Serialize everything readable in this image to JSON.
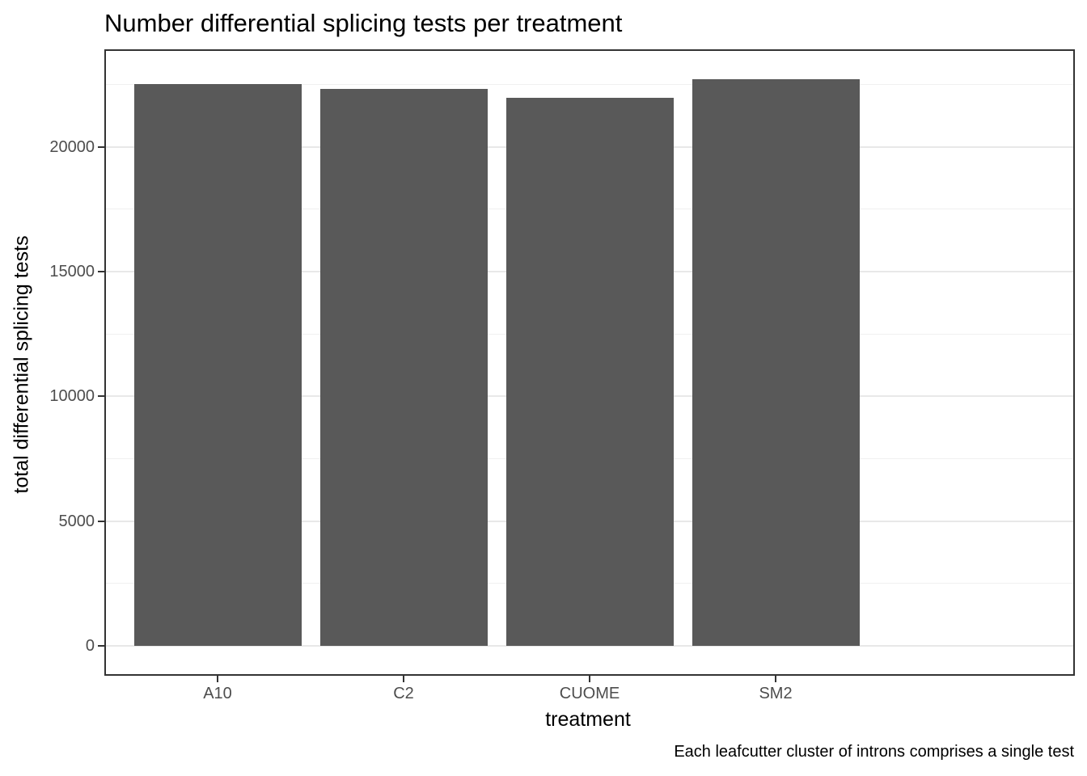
{
  "chart_data": {
    "type": "bar",
    "title": "Number differential splicing tests per treatment",
    "xlabel": "treatment",
    "ylabel": "total differential splicing tests",
    "caption": "Each leafcutter cluster of introns comprises a single test",
    "categories": [
      "A10",
      "C2",
      "CUOME",
      "SM2"
    ],
    "values": [
      22520,
      22340,
      21980,
      22710
    ],
    "yticks": [
      0,
      5000,
      10000,
      15000,
      20000
    ],
    "ytick_labels": [
      "0",
      "5000",
      "10000",
      "15000",
      "20000"
    ],
    "minor_gridlines": [
      2500,
      7500,
      12500,
      17500,
      22500
    ],
    "ylim": [
      -1135,
      23850
    ],
    "grid": "horizontal major+minor",
    "legend": "none",
    "colors": {
      "bar_fill": "#595959",
      "panel_border": "#333333",
      "axis_tick": "#333333",
      "axis_text": "#4D4D4D",
      "title_text": "#000000",
      "grid_major": "#E8E8E8",
      "grid_minor": "#F0F0F0",
      "background": "#FFFFFF"
    }
  }
}
